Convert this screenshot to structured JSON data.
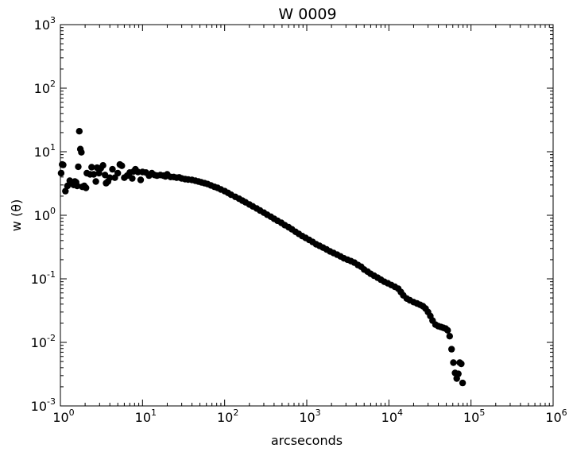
{
  "chart_data": {
    "type": "scatter",
    "title": "W 0009",
    "xlabel": "arcseconds",
    "ylabel": "w (θ)",
    "xscale": "log",
    "yscale": "log",
    "xlim": [
      1,
      1000000
    ],
    "ylim": [
      0.001,
      1000
    ],
    "grid": false,
    "marker_color": "#000000",
    "x_ticks": [
      {
        "base": "10",
        "exp": "0"
      },
      {
        "base": "10",
        "exp": "1"
      },
      {
        "base": "10",
        "exp": "2"
      },
      {
        "base": "10",
        "exp": "3"
      },
      {
        "base": "10",
        "exp": "4"
      },
      {
        "base": "10",
        "exp": "5"
      },
      {
        "base": "10",
        "exp": "6"
      }
    ],
    "y_ticks": [
      {
        "base": "10",
        "exp": "-3"
      },
      {
        "base": "10",
        "exp": "-2"
      },
      {
        "base": "10",
        "exp": "-1"
      },
      {
        "base": "10",
        "exp": "0"
      },
      {
        "base": "10",
        "exp": "1"
      },
      {
        "base": "10",
        "exp": "2"
      },
      {
        "base": "10",
        "exp": "3"
      }
    ],
    "scatter_points": [
      [
        1.02,
        4.6
      ],
      [
        1.05,
        6.3
      ],
      [
        1.08,
        6.2
      ],
      [
        1.15,
        2.4
      ],
      [
        1.22,
        2.9
      ],
      [
        1.3,
        3.5
      ],
      [
        1.38,
        3.2
      ],
      [
        1.45,
        3.0
      ],
      [
        1.5,
        3.4
      ],
      [
        1.55,
        3.3
      ],
      [
        1.6,
        2.9
      ],
      [
        1.65,
        5.8
      ],
      [
        1.7,
        21.0
      ],
      [
        1.75,
        11.0
      ],
      [
        1.8,
        9.8
      ],
      [
        1.85,
        2.8
      ],
      [
        1.95,
        2.9
      ],
      [
        2.05,
        2.7
      ],
      [
        2.1,
        4.6
      ],
      [
        2.3,
        4.4
      ],
      [
        2.4,
        5.7
      ],
      [
        2.55,
        4.4
      ],
      [
        2.7,
        3.4
      ],
      [
        2.8,
        5.6
      ],
      [
        2.95,
        4.6
      ],
      [
        3.1,
        5.5
      ],
      [
        3.3,
        6.1
      ],
      [
        3.5,
        4.3
      ],
      [
        3.6,
        3.2
      ],
      [
        3.8,
        3.4
      ],
      [
        4.0,
        3.9
      ],
      [
        4.3,
        5.3
      ],
      [
        4.6,
        3.9
      ],
      [
        5.0,
        4.6
      ],
      [
        5.3,
        6.3
      ],
      [
        5.6,
        6.0
      ],
      [
        6.0,
        3.9
      ],
      [
        6.5,
        4.2
      ],
      [
        7.0,
        4.7
      ],
      [
        7.5,
        3.8
      ],
      [
        7.8,
        4.9
      ],
      [
        8.2,
        5.3
      ],
      [
        8.8,
        4.8
      ],
      [
        9.5,
        3.6
      ],
      [
        10.0,
        4.8
      ],
      [
        11.0,
        4.7
      ],
      [
        12.0,
        4.2
      ],
      [
        13.0,
        4.6
      ],
      [
        14.0,
        4.3
      ],
      [
        15.0,
        4.2
      ],
      [
        16.5,
        4.3
      ],
      [
        18.0,
        4.2
      ],
      [
        19.0,
        4.1
      ],
      [
        20.0,
        4.4
      ],
      [
        22.0,
        4.0
      ],
      [
        24.0,
        4.0
      ],
      [
        26.0,
        3.9
      ],
      [
        28.0,
        3.95
      ],
      [
        30.0,
        3.8
      ],
      [
        33.0,
        3.7
      ],
      [
        36.0,
        3.65
      ],
      [
        40.0,
        3.6
      ],
      [
        44.0,
        3.5
      ],
      [
        48.0,
        3.4
      ],
      [
        52.0,
        3.3
      ],
      [
        57.0,
        3.2
      ],
      [
        62.0,
        3.1
      ],
      [
        68.0,
        2.95
      ],
      [
        75.0,
        2.8
      ],
      [
        82.0,
        2.7
      ],
      [
        90.0,
        2.55
      ],
      [
        100.0,
        2.4
      ],
      [
        110.0,
        2.25
      ],
      [
        120.0,
        2.1
      ],
      [
        135.0,
        1.95
      ],
      [
        150.0,
        1.82
      ],
      [
        165.0,
        1.7
      ],
      [
        180.0,
        1.6
      ],
      [
        200.0,
        1.48
      ],
      [
        220.0,
        1.38
      ],
      [
        245.0,
        1.28
      ],
      [
        270.0,
        1.19
      ],
      [
        300.0,
        1.1
      ],
      [
        330.0,
        1.02
      ],
      [
        365.0,
        0.95
      ],
      [
        400.0,
        0.88
      ],
      [
        440.0,
        0.82
      ],
      [
        490.0,
        0.76
      ],
      [
        540.0,
        0.7
      ],
      [
        600.0,
        0.65
      ],
      [
        660.0,
        0.6
      ],
      [
        730.0,
        0.55
      ],
      [
        800.0,
        0.51
      ],
      [
        880.0,
        0.47
      ],
      [
        970.0,
        0.44
      ],
      [
        1070.0,
        0.41
      ],
      [
        1180.0,
        0.38
      ],
      [
        1300.0,
        0.35
      ],
      [
        1430.0,
        0.33
      ],
      [
        1580.0,
        0.31
      ],
      [
        1740.0,
        0.29
      ],
      [
        1920.0,
        0.27
      ],
      [
        2120.0,
        0.255
      ],
      [
        2340.0,
        0.24
      ],
      [
        2580.0,
        0.225
      ],
      [
        2840.0,
        0.21
      ],
      [
        3130.0,
        0.2
      ],
      [
        3450.0,
        0.19
      ],
      [
        3800.0,
        0.18
      ],
      [
        4200.0,
        0.165
      ],
      [
        4600.0,
        0.155
      ],
      [
        5000.0,
        0.14
      ],
      [
        5500.0,
        0.13
      ],
      [
        6000.0,
        0.12
      ],
      [
        6600.0,
        0.112
      ],
      [
        7300.0,
        0.104
      ],
      [
        8000.0,
        0.097
      ],
      [
        8800.0,
        0.09
      ],
      [
        9700.0,
        0.085
      ],
      [
        10700.0,
        0.08
      ],
      [
        11800.0,
        0.075
      ],
      [
        13000.0,
        0.07
      ],
      [
        14000.0,
        0.062
      ],
      [
        15000.0,
        0.055
      ],
      [
        16500.0,
        0.049
      ],
      [
        18000.0,
        0.046
      ],
      [
        20000.0,
        0.043
      ],
      [
        22000.0,
        0.041
      ],
      [
        24000.0,
        0.039
      ],
      [
        26000.0,
        0.037
      ],
      [
        28000.0,
        0.034
      ],
      [
        30000.0,
        0.03
      ],
      [
        32000.0,
        0.026
      ],
      [
        34000.0,
        0.022
      ],
      [
        37000.0,
        0.019
      ],
      [
        40000.0,
        0.018
      ],
      [
        43000.0,
        0.0175
      ],
      [
        46000.0,
        0.017
      ],
      [
        49000.0,
        0.0165
      ],
      [
        52000.0,
        0.0155
      ],
      [
        55000.0,
        0.0125
      ],
      [
        58000.0,
        0.0078
      ],
      [
        61000.0,
        0.0048
      ],
      [
        64000.0,
        0.0033
      ],
      [
        67000.0,
        0.0027
      ],
      [
        70000.0,
        0.0032
      ],
      [
        73000.0,
        0.0048
      ],
      [
        76000.0,
        0.0046
      ],
      [
        79000.0,
        0.0023
      ]
    ]
  }
}
